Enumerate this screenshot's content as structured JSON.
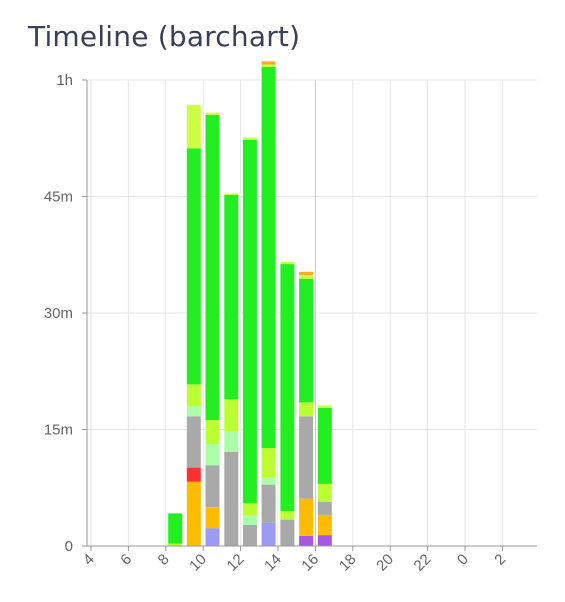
{
  "title": "Timeline (barchart)",
  "chart_data": {
    "type": "bar",
    "stacked": true,
    "x_unit": "hour of day",
    "x_ticks": [
      "4",
      "6",
      "8",
      "10",
      "12",
      "14",
      "16",
      "18",
      "20",
      "22",
      "0",
      "2"
    ],
    "y_ticks": [
      "0",
      "15m",
      "30m",
      "45m",
      "1h"
    ],
    "y_unit": "minutes",
    "ylim": [
      0,
      60
    ],
    "grid": true,
    "hours": [
      8,
      9,
      10,
      11,
      12,
      13,
      14,
      15,
      16
    ],
    "series": [
      {
        "color": "#a855e0",
        "values": [
          0,
          0,
          0,
          0,
          0,
          0,
          0,
          1.3,
          1.4
        ]
      },
      {
        "color": "#9b9bf5",
        "values": [
          0,
          0,
          2.3,
          0,
          0,
          3,
          0,
          0,
          0
        ]
      },
      {
        "color": "#ffbb00",
        "values": [
          0,
          8.3,
          2.7,
          0,
          0,
          0,
          0,
          4.8,
          2.6
        ]
      },
      {
        "color": "#ff3030",
        "values": [
          0,
          1.8,
          0,
          0,
          0,
          0,
          0,
          0,
          0
        ]
      },
      {
        "color": "#a9a9a9",
        "values": [
          0,
          6.6,
          5.4,
          12.1,
          2.7,
          4.9,
          3.4,
          10.6,
          1.7
        ]
      },
      {
        "color": "#aaffaa",
        "values": [
          0,
          1.3,
          2.7,
          2.7,
          1.2,
          0.9,
          0,
          0,
          0
        ]
      },
      {
        "color": "#bbff33",
        "values": [
          0.3,
          2.8,
          3.1,
          4.1,
          1.6,
          3.8,
          1.1,
          1.8,
          2.3
        ]
      },
      {
        "color": "#22ee22",
        "values": [
          3.9,
          30.4,
          39.3,
          26.3,
          46.8,
          49.1,
          31.8,
          15.9,
          9.8
        ]
      },
      {
        "color": "#ccff44",
        "values": [
          0,
          5.6,
          0.3,
          0.2,
          0.3,
          0.3,
          0.3,
          0.5,
          0.3
        ]
      },
      {
        "color": "#ffaa22",
        "values": [
          0,
          0,
          0,
          0,
          0,
          0.4,
          0,
          0.4,
          0
        ]
      }
    ]
  }
}
